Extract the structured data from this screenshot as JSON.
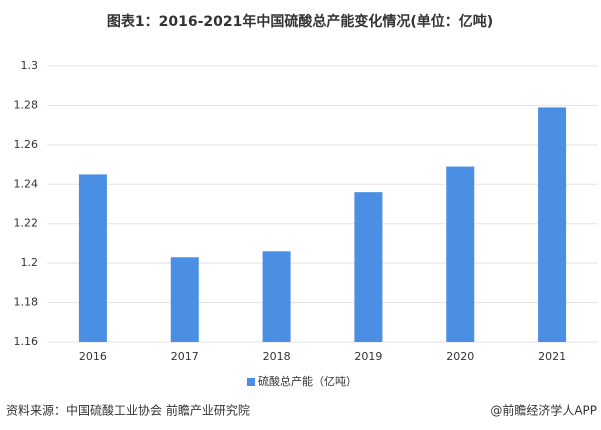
{
  "chart_data": {
    "type": "bar",
    "title": "图表1：2016-2021年中国硫酸总产能变化情况(单位：亿吨)",
    "categories": [
      "2016",
      "2017",
      "2018",
      "2019",
      "2020",
      "2021"
    ],
    "series": [
      {
        "name": "硫酸总产能（亿吨）",
        "color": "#4a8fe3",
        "values": [
          1.245,
          1.203,
          1.206,
          1.236,
          1.249,
          1.279
        ]
      }
    ],
    "ylim": [
      1.16,
      1.3
    ],
    "yticks": [
      1.16,
      1.18,
      1.2,
      1.22,
      1.24,
      1.26,
      1.28,
      1.3
    ],
    "grid": true,
    "legend": "bottom",
    "source": "资料来源：中国硫酸工业协会 前瞻产业研究院",
    "credit": "@前瞻经济学人APP"
  }
}
